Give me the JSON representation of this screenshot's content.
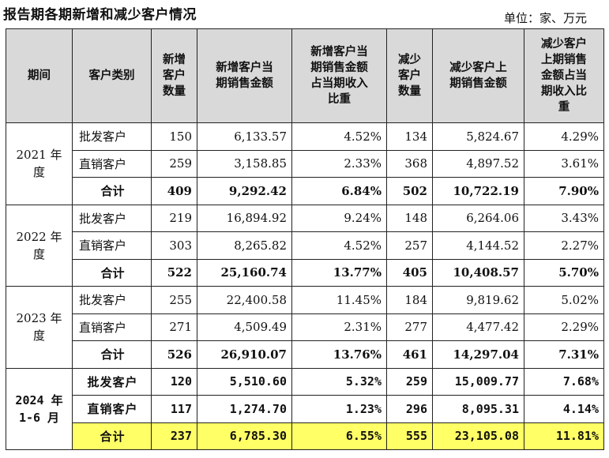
{
  "title": "报告期各期新增和减少客户情况",
  "unit": "单位：家、万元",
  "headers": [
    "期间",
    "客户类别",
    "新增客户数量",
    "新增客户当期销售金额",
    "新增客户当期销售金额占当期收入比重",
    "减少客户数量",
    "减少客户上期销售金额",
    "减少客户上期销售金额占当期收入比重"
  ],
  "header_lines": [
    [
      "期间"
    ],
    [
      "客户类别"
    ],
    [
      "新增",
      "客户",
      "数量"
    ],
    [
      "新增客户当",
      "期销售金额"
    ],
    [
      "新增客户当",
      "期销售金额",
      "占当期收入",
      "比重"
    ],
    [
      "减少",
      "客户",
      "数量"
    ],
    [
      "减少客户上",
      "期销售金额"
    ],
    [
      "减少客户",
      "上期销售",
      "金额占当",
      "期收入比",
      "重"
    ]
  ],
  "periods": [
    {
      "label_lines": [
        "2021 年",
        "度"
      ],
      "rows": [
        {
          "type": "批发客户",
          "new_count": "150",
          "new_amount": "6,133.57",
          "new_ratio": "4.52%",
          "lost_count": "134",
          "lost_amount": "5,824.67",
          "lost_ratio": "4.29%"
        },
        {
          "type": "直销客户",
          "new_count": "259",
          "new_amount": "3,158.85",
          "new_ratio": "2.33%",
          "lost_count": "368",
          "lost_amount": "4,897.52",
          "lost_ratio": "3.61%"
        },
        {
          "type": "合计",
          "new_count": "409",
          "new_amount": "9,292.42",
          "new_ratio": "6.84%",
          "lost_count": "502",
          "lost_amount": "10,722.19",
          "lost_ratio": "7.90%"
        }
      ]
    },
    {
      "label_lines": [
        "2022 年",
        "度"
      ],
      "rows": [
        {
          "type": "批发客户",
          "new_count": "219",
          "new_amount": "16,894.92",
          "new_ratio": "9.24%",
          "lost_count": "148",
          "lost_amount": "6,264.06",
          "lost_ratio": "3.43%"
        },
        {
          "type": "直销客户",
          "new_count": "303",
          "new_amount": "8,265.82",
          "new_ratio": "4.52%",
          "lost_count": "257",
          "lost_amount": "4,144.52",
          "lost_ratio": "2.27%"
        },
        {
          "type": "合计",
          "new_count": "522",
          "new_amount": "25,160.74",
          "new_ratio": "13.77%",
          "lost_count": "405",
          "lost_amount": "10,408.57",
          "lost_ratio": "5.70%"
        }
      ]
    },
    {
      "label_lines": [
        "2023 年",
        "度"
      ],
      "rows": [
        {
          "type": "批发客户",
          "new_count": "255",
          "new_amount": "22,400.58",
          "new_ratio": "11.45%",
          "lost_count": "184",
          "lost_amount": "9,819.62",
          "lost_ratio": "5.02%"
        },
        {
          "type": "直销客户",
          "new_count": "271",
          "new_amount": "4,509.49",
          "new_ratio": "2.31%",
          "lost_count": "277",
          "lost_amount": "4,477.42",
          "lost_ratio": "2.29%"
        },
        {
          "type": "合计",
          "new_count": "526",
          "new_amount": "26,910.07",
          "new_ratio": "13.76%",
          "lost_count": "461",
          "lost_amount": "14,297.04",
          "lost_ratio": "7.31%"
        }
      ]
    },
    {
      "label_lines": [
        "2024 年",
        "1-6 月"
      ],
      "rows": [
        {
          "type": "批发客户",
          "new_count": "120",
          "new_amount": "5,510.60",
          "new_ratio": "5.32%",
          "lost_count": "259",
          "lost_amount": "15,009.77",
          "lost_ratio": "7.68%"
        },
        {
          "type": "直销客户",
          "new_count": "117",
          "new_amount": "1,274.70",
          "new_ratio": "1.23%",
          "lost_count": "296",
          "lost_amount": "8,095.31",
          "lost_ratio": "4.14%"
        },
        {
          "type": "合计",
          "new_count": "237",
          "new_amount": "6,785.30",
          "new_ratio": "6.55%",
          "lost_count": "555",
          "lost_amount": "23,105.08",
          "lost_ratio": "11.81%"
        }
      ]
    }
  ],
  "highlight_color": "#ffff66",
  "header_bg": "#d9d9d9"
}
